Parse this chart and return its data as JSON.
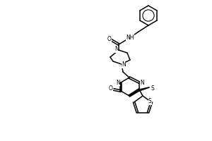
{
  "bg_color": "#ffffff",
  "line_color": "#000000",
  "lw": 1.1,
  "figsize": [
    3.0,
    2.0
  ],
  "dpi": 100,
  "xlim": [
    0,
    300
  ],
  "ylim": [
    0,
    200
  ]
}
